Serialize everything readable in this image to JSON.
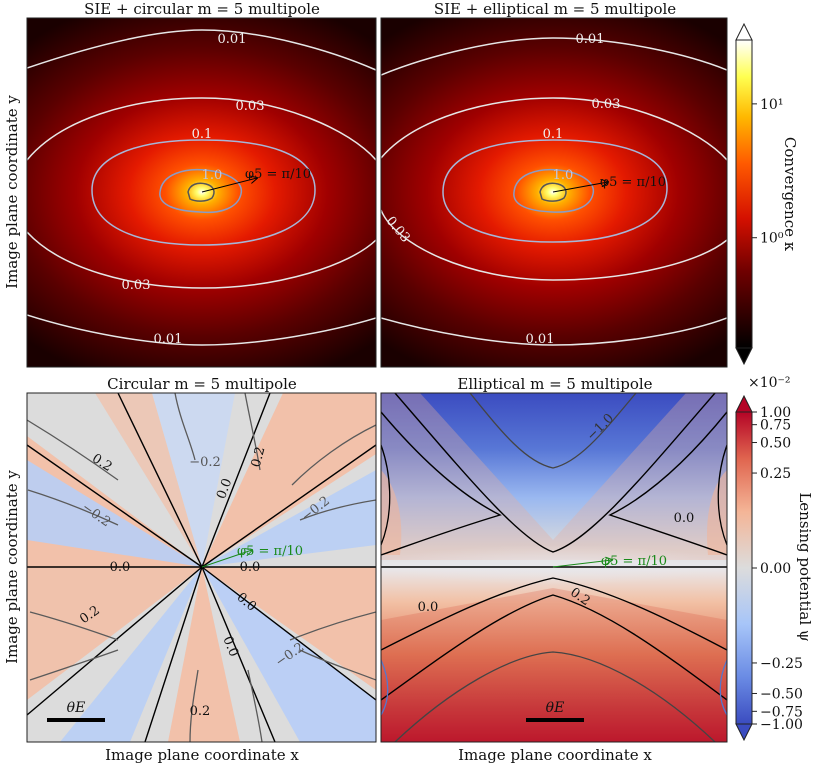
{
  "chart_data": [
    {
      "type": "heatmap",
      "title": "SIE + circular m = 5 multipole",
      "ylabel": "Image plane coordinate y",
      "quantity": "convergence",
      "multipole_angle_label": "φ5 = π/10",
      "contour_levels": [
        0.01,
        0.03,
        0.1,
        1.0
      ],
      "contour_labels": [
        "0.01",
        "0.03",
        "0.1",
        "1.0",
        "0.03",
        "0.01"
      ]
    },
    {
      "type": "heatmap",
      "title": "SIE + elliptical m = 5 multipole",
      "quantity": "convergence",
      "multipole_angle_label": "φ5 = π/10",
      "contour_levels": [
        0.01,
        0.03,
        0.1,
        1.0
      ],
      "contour_labels": [
        "0.01",
        "0.03",
        "0.1",
        "1.0",
        "0.03",
        "0.01"
      ]
    },
    {
      "type": "heatmap",
      "title": "Circular m = 5 multipole",
      "xlabel": "Image plane coordinate x",
      "ylabel": "Image plane coordinate y",
      "quantity": "lensing potential",
      "multipole_angle_label": "φ5 = π/10",
      "scalebar_label": "θE",
      "contour_levels": [
        -0.2,
        0.0,
        0.2
      ],
      "contour_labels": [
        "0.2",
        "−0.2",
        "0.2",
        "−0.2",
        "0.0",
        "0.0",
        "0.0",
        "0.0",
        "0.0",
        "0.2",
        "−0.2",
        "−0.2",
        "0.2"
      ]
    },
    {
      "type": "heatmap",
      "title": "Elliptical m = 5 multipole",
      "xlabel": "Image plane coordinate x",
      "quantity": "lensing potential",
      "multipole_angle_label": "φ5 = π/10",
      "scalebar_label": "θE",
      "contour_levels": [
        -1.0,
        0.0,
        0.2
      ],
      "contour_labels": [
        "−1.0",
        "0.0",
        "0.0",
        "0.2"
      ]
    }
  ],
  "colorbars": {
    "convergence": {
      "label": "Convergence κ",
      "scale": "log",
      "range": [
        0.15,
        30
      ],
      "ticks": [
        1,
        10
      ],
      "tick_labels": [
        "10⁰",
        "10¹"
      ]
    },
    "potential": {
      "label": "Lensing potential ψ",
      "scale": "symlog",
      "range": [
        -1.0,
        1.0
      ],
      "multiplier": "×10⁻²",
      "ticks": [
        1.0,
        0.75,
        0.5,
        0.25,
        0.0,
        -0.25,
        -0.5,
        -0.75,
        -1.0
      ],
      "tick_labels": [
        "1.00",
        "0.75",
        "0.50",
        "0.25",
        "0.00",
        "−0.25",
        "−0.50",
        "−0.75",
        "−1.00"
      ]
    }
  }
}
